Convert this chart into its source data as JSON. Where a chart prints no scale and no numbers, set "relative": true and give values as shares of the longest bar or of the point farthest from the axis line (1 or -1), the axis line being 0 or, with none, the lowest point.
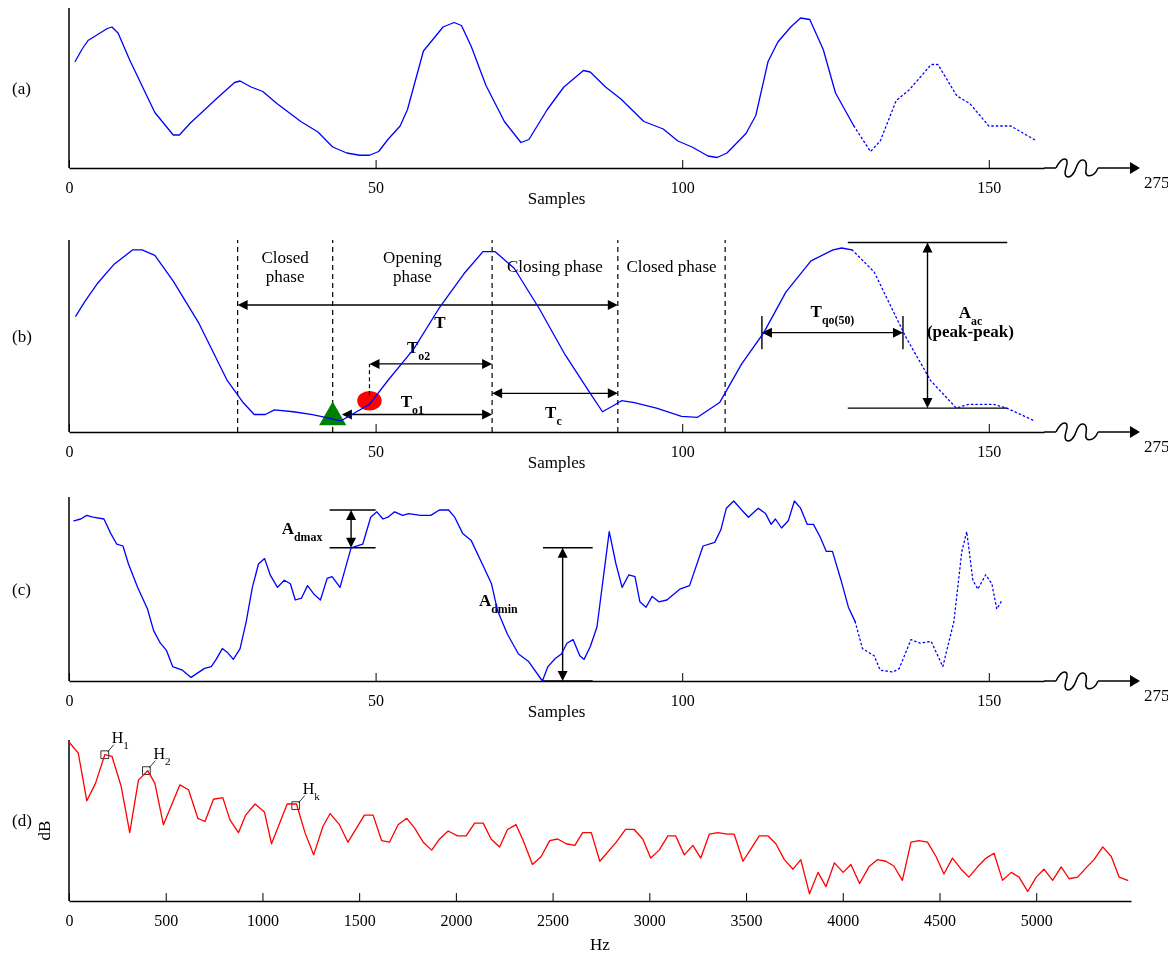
{
  "chart_data": [
    {
      "type": "line",
      "title": "(a)",
      "xlabel": "Samples",
      "relative": true,
      "xlim": [
        0,
        159
      ],
      "xticks": [
        0,
        50,
        100,
        150
      ],
      "annotations": [
        "275"
      ],
      "series": [
        {
          "color": "#0000ff",
          "line_style": "solid",
          "x": [
            1,
            2.1,
            3.1,
            6.25,
            7,
            8,
            9.9,
            12,
            14,
            17,
            18,
            19.8,
            24,
            27,
            27.9,
            29.7,
            31.6,
            33.9,
            37.8,
            40.6,
            43,
            45.3,
            47.4,
            49,
            50.5,
            52,
            54,
            55.2,
            57.8,
            61,
            62.8,
            64,
            65.6,
            68,
            71,
            73.7,
            75,
            78,
            80.7,
            83.9,
            85,
            87.5,
            90,
            93.75,
            96.9,
            99.3,
            101.6,
            104.2,
            105.7,
            107.3,
            110.4,
            112,
            114,
            115.6,
            117.7,
            119.3,
            120.8,
            123,
            125,
            128
          ],
          "values": [
            0.71,
            0.79,
            0.85,
            0.93,
            0.94,
            0.9,
            0.72,
            0.54,
            0.37,
            0.22,
            0.22,
            0.3,
            0.46,
            0.57,
            0.58,
            0.54,
            0.51,
            0.43,
            0.31,
            0.24,
            0.14,
            0.1,
            0.085,
            0.085,
            0.11,
            0.19,
            0.28,
            0.39,
            0.78,
            0.94,
            0.97,
            0.95,
            0.81,
            0.55,
            0.31,
            0.17,
            0.19,
            0.39,
            0.54,
            0.65,
            0.64,
            0.54,
            0.46,
            0.31,
            0.26,
            0.18,
            0.14,
            0.08,
            0.07,
            0.1,
            0.23,
            0.35,
            0.71,
            0.84,
            0.94,
            1,
            0.99,
            0.79,
            0.5,
            0.28
          ]
        },
        {
          "color": "#0000ff",
          "line_style": "dotted",
          "x": [
            128,
            130.7,
            132.3,
            134.9,
            137,
            140.6,
            141.7,
            144.8,
            146.9,
            150,
            153.6,
            157.8
          ],
          "values": [
            0.28,
            0.11,
            0.18,
            0.45,
            0.52,
            0.69,
            0.69,
            0.48,
            0.43,
            0.28,
            0.28,
            0.18
          ]
        }
      ]
    },
    {
      "type": "line",
      "title": "(b)",
      "xlabel": "Samples",
      "relative": true,
      "xlim": [
        0,
        159
      ],
      "xticks": [
        0,
        50,
        100,
        150
      ],
      "ref_lines": [
        {
          "axis": "x",
          "value": 27.5,
          "line_style": "dashed"
        },
        {
          "axis": "x",
          "value": 43,
          "line_style": "dashed"
        },
        {
          "axis": "x",
          "value": 69,
          "line_style": "dashed"
        },
        {
          "axis": "x",
          "value": 89.5,
          "line_style": "dashed"
        },
        {
          "axis": "x",
          "value": 107,
          "line_style": "dashed"
        }
      ],
      "annotations": [
        "275",
        "Closed phase",
        "Opening phase",
        "Closing phase",
        "Closed phase",
        "T",
        "T$_{o2}$",
        "T$_{o1}$",
        "T$_{c}$",
        "T$_{qo(50)}$",
        "A$_{ac}$ (peak-peak)"
      ],
      "series": [
        {
          "color": "#0000ff",
          "line_style": "solid",
          "x": [
            1.1,
            2.6,
            4.7,
            7.3,
            10.4,
            11.9,
            14,
            17,
            21.2,
            25.8,
            28.4,
            30.2,
            32,
            33.5,
            36.6,
            39.7,
            41.8,
            44.3,
            46.9,
            49,
            52,
            56.2,
            60.3,
            64.4,
            67.5,
            69.5,
            72.6,
            76.7,
            80.9,
            85,
            87,
            88.6,
            90.1,
            92.2,
            95.8,
            99.9,
            102.5,
            106.1,
            109.7,
            113.3,
            116.9,
            121,
            124.6,
            126,
            127.7
          ],
          "values": [
            0.63,
            0.71,
            0.81,
            0.91,
            0.99,
            0.99,
            0.96,
            0.82,
            0.59,
            0.28,
            0.16,
            0.095,
            0.095,
            0.12,
            0.11,
            0.095,
            0.08,
            0.06,
            0.11,
            0.15,
            0.28,
            0.45,
            0.67,
            0.86,
            0.98,
            0.98,
            0.89,
            0.67,
            0.42,
            0.21,
            0.11,
            0.14,
            0.17,
            0.16,
            0.13,
            0.085,
            0.08,
            0.16,
            0.37,
            0.54,
            0.76,
            0.93,
            0.99,
            1,
            0.99
          ]
        },
        {
          "color": "#0000ff",
          "line_style": "dotted",
          "x": [
            127.7,
            131.3,
            136.4,
            140.5,
            144.7,
            146.7,
            150.8,
            152.9,
            157.5
          ],
          "values": [
            0.99,
            0.87,
            0.52,
            0.28,
            0.13,
            0.15,
            0.15,
            0.13,
            0.06
          ]
        },
        {
          "type": "scatter",
          "marker": "triangle",
          "color": "#008000",
          "x": [
            43
          ],
          "values": [
            0.08
          ]
        },
        {
          "type": "scatter",
          "marker": "circle",
          "color": "#ff0000",
          "x": [
            49
          ],
          "values": [
            0.17
          ]
        }
      ]
    },
    {
      "type": "line",
      "title": "(c)",
      "xlabel": "Samples",
      "relative": true,
      "xlim": [
        0,
        159
      ],
      "xticks": [
        0,
        50,
        100,
        150
      ],
      "annotations": [
        "275",
        "A$_{dmax}$",
        "A$_{dmin}$"
      ],
      "series": [
        {
          "color": "#0000ff",
          "line_style": "solid",
          "x": [
            0.8,
            1.9,
            2.9,
            3.9,
            5.7,
            6.8,
            7.8,
            8.8,
            9.7,
            11.2,
            12.8,
            13.8,
            14.9,
            15.9,
            16.9,
            18.5,
            19.9,
            22.1,
            23.2,
            24,
            25,
            25.8,
            26.8,
            27.9,
            28.9,
            29.9,
            30.9,
            31.9,
            32.8,
            34,
            35.1,
            36.1,
            36.9,
            37.9,
            38.9,
            40,
            41,
            42.1,
            42.9,
            44.2,
            46,
            47.9,
            49.2,
            50.2,
            51.2,
            52,
            53.1,
            54.4,
            55.4,
            57.3,
            59,
            60.4,
            61.9,
            62.9,
            64.2,
            65.6,
            67.4,
            68.9,
            69.9,
            71.5,
            73.3,
            74.9,
            77.2,
            78.1,
            79.3,
            80.3,
            81.2,
            82.2,
            83.3,
            84,
            85,
            86.1,
            88.1,
            89.2,
            90.2,
            91.3,
            92.3,
            93.1,
            94.1,
            95.1,
            96.2,
            97.5,
            99.6,
            101.2,
            103.4,
            105.3,
            106.3,
            107.2,
            108.4,
            109.7,
            110.8,
            112.4,
            113.6,
            114.5,
            115.2,
            116.2,
            117.3,
            118.3,
            119.3,
            120.4,
            121.4,
            122.5,
            123.5,
            124.5,
            125.9,
            127.1,
            128.2
          ],
          "values": [
            0.89,
            0.9,
            0.92,
            0.91,
            0.9,
            0.82,
            0.76,
            0.75,
            0.65,
            0.52,
            0.4,
            0.28,
            0.21,
            0.17,
            0.08,
            0.06,
            0.02,
            0.07,
            0.08,
            0.12,
            0.18,
            0.16,
            0.12,
            0.18,
            0.33,
            0.52,
            0.65,
            0.68,
            0.59,
            0.52,
            0.56,
            0.54,
            0.45,
            0.46,
            0.53,
            0.48,
            0.45,
            0.57,
            0.58,
            0.52,
            0.74,
            0.76,
            0.91,
            0.94,
            0.9,
            0.91,
            0.94,
            0.92,
            0.93,
            0.92,
            0.92,
            0.95,
            0.95,
            0.91,
            0.82,
            0.78,
            0.65,
            0.54,
            0.39,
            0.26,
            0.15,
            0.11,
            0,
            0.08,
            0.125,
            0.15,
            0.21,
            0.23,
            0.14,
            0.12,
            0.19,
            0.3,
            0.83,
            0.65,
            0.52,
            0.59,
            0.58,
            0.44,
            0.41,
            0.47,
            0.44,
            0.45,
            0.51,
            0.53,
            0.75,
            0.77,
            0.84,
            0.96,
            1,
            0.95,
            0.91,
            0.96,
            0.93,
            0.87,
            0.9,
            0.85,
            0.89,
            1,
            0.96,
            0.87,
            0.87,
            0.8,
            0.72,
            0.72,
            0.56,
            0.41,
            0.33
          ]
        },
        {
          "color": "#0000ff",
          "line_style": "dotted",
          "x": [
            128.2,
            129.4,
            131.3,
            132.3,
            134.4,
            135.4,
            137.3,
            138.8,
            140.6,
            142.5,
            144.3,
            145.6,
            146.4,
            147.4,
            148.2,
            149.5,
            150.5,
            151.3,
            152
          ],
          "values": [
            0.33,
            0.18,
            0.14,
            0.06,
            0.05,
            0.07,
            0.23,
            0.21,
            0.22,
            0.08,
            0.33,
            0.72,
            0.83,
            0.56,
            0.51,
            0.59,
            0.54,
            0.4,
            0.44
          ]
        }
      ]
    },
    {
      "type": "line",
      "title": "(d)",
      "xlabel": "Hz",
      "ylabel": "dB",
      "relative": true,
      "xlim": [
        0,
        5490
      ],
      "xticks": [
        0,
        500,
        1000,
        1500,
        2000,
        2500,
        3000,
        3500,
        4000,
        4500,
        5000
      ],
      "annotations": [
        {
          "text": "H$_{1}$",
          "x": 185,
          "y": 0.92
        },
        {
          "text": "H$_{2}$",
          "x": 400,
          "y": 0.82
        },
        {
          "text": "H$_{k}$",
          "x": 1172,
          "y": 0.6
        }
      ],
      "series": [
        {
          "color": "#ff0000",
          "line_style": "solid",
          "x": [
            0,
            48,
            92,
            137,
            185,
            222,
            270,
            314,
            359,
            407,
            444,
            488,
            573,
            618,
            666,
            703,
            747,
            795,
            832,
            876,
            913,
            962,
            1010,
            1047,
            1128,
            1176,
            1220,
            1265,
            1313,
            1350,
            1398,
            1442,
            1527,
            1572,
            1616,
            1657,
            1701,
            1746,
            1786,
            1831,
            1875,
            1916,
            1960,
            2008,
            2053,
            2097,
            2141,
            2182,
            2226,
            2267,
            2311,
            2348,
            2396,
            2441,
            2485,
            2526,
            2570,
            2615,
            2655,
            2700,
            2744,
            2829,
            2877,
            2922,
            2966,
            3007,
            3051,
            3096,
            3136,
            3181,
            3225,
            3266,
            3310,
            3354,
            3402,
            3439,
            3484,
            3532,
            3568,
            3613,
            3654,
            3698,
            3743,
            3783,
            3828,
            3872,
            3913,
            3957,
            4002,
            4042,
            4087,
            4135,
            4179,
            4223,
            4264,
            4308,
            4353,
            4394,
            4438,
            4482,
            4523,
            4567,
            4612,
            4652,
            4697,
            4741,
            4782,
            4826,
            4871,
            4911,
            4956,
            5000,
            5040,
            5085,
            5129,
            5170,
            5214,
            5259,
            5299,
            5344,
            5388,
            5429,
            5473
          ],
          "values": [
            1,
            0.93,
            0.63,
            0.74,
            0.92,
            0.91,
            0.72,
            0.43,
            0.76,
            0.82,
            0.74,
            0.48,
            0.73,
            0.7,
            0.52,
            0.5,
            0.64,
            0.65,
            0.51,
            0.43,
            0.54,
            0.61,
            0.56,
            0.36,
            0.61,
            0.61,
            0.43,
            0.29,
            0.47,
            0.55,
            0.48,
            0.37,
            0.54,
            0.54,
            0.38,
            0.37,
            0.48,
            0.52,
            0.46,
            0.37,
            0.32,
            0.39,
            0.44,
            0.41,
            0.41,
            0.49,
            0.49,
            0.39,
            0.34,
            0.45,
            0.48,
            0.38,
            0.23,
            0.28,
            0.38,
            0.39,
            0.36,
            0.35,
            0.43,
            0.43,
            0.25,
            0.37,
            0.45,
            0.45,
            0.39,
            0.27,
            0.32,
            0.41,
            0.41,
            0.29,
            0.35,
            0.27,
            0.42,
            0.43,
            0.42,
            0.42,
            0.25,
            0.34,
            0.41,
            0.41,
            0.36,
            0.26,
            0.2,
            0.26,
            0.045,
            0.18,
            0.09,
            0.24,
            0.18,
            0.23,
            0.11,
            0.215,
            0.26,
            0.25,
            0.22,
            0.13,
            0.37,
            0.38,
            0.37,
            0.28,
            0.17,
            0.27,
            0.2,
            0.15,
            0.215,
            0.27,
            0.3,
            0.13,
            0.18,
            0.15,
            0.06,
            0.15,
            0.2,
            0.13,
            0.215,
            0.14,
            0.15,
            0.21,
            0.26,
            0.34,
            0.28,
            0.15,
            0.13
          ]
        },
        {
          "type": "scatter",
          "marker": "square",
          "color": "#000000",
          "x": [
            185,
            400,
            1172
          ],
          "values": [
            0.92,
            0.82,
            0.6
          ]
        }
      ]
    }
  ]
}
